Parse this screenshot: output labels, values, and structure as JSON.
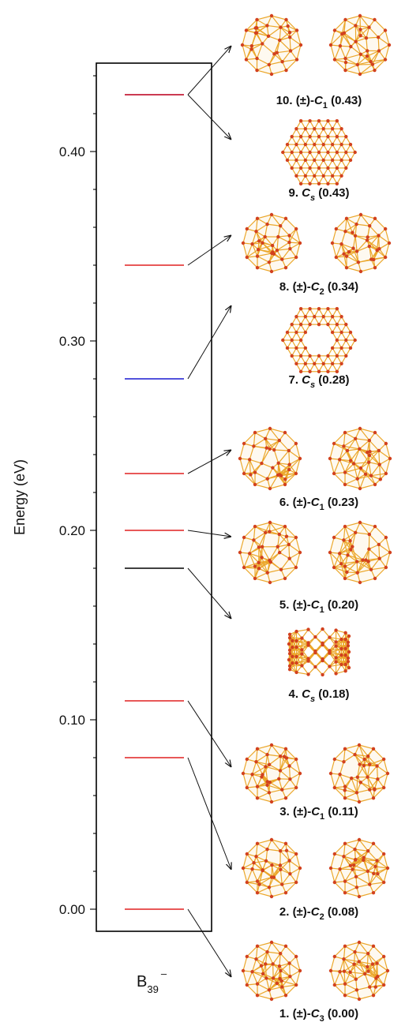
{
  "chart_data": {
    "type": "energy-level",
    "ylabel": "Energy (eV)",
    "ylim": [
      -0.02,
      0.455
    ],
    "yticks": [
      0.0,
      0.1,
      0.2,
      0.3,
      0.4
    ],
    "ytick_labels": [
      "0.00",
      "0.10",
      "0.20",
      "0.30",
      "0.40"
    ],
    "category": {
      "base": "B",
      "sub": "39",
      "sup": "–"
    },
    "colors": {
      "red": "#e02020",
      "blue": "#1a1ad0",
      "black": "#000000",
      "boron": "#d2411e",
      "bond": "#eba72a"
    },
    "levels": [
      {
        "id": 1,
        "energy": 0.0,
        "color": "red",
        "num": "1.",
        "pre": "(±)-",
        "sym": "C",
        "sub": "3",
        "val": "(0.00)",
        "mol": "cage"
      },
      {
        "id": 2,
        "energy": 0.08,
        "color": "red",
        "num": "2.",
        "pre": "(±)-",
        "sym": "C",
        "sub": "2",
        "val": "(0.08)",
        "mol": "cage"
      },
      {
        "id": 3,
        "energy": 0.11,
        "color": "red",
        "num": "3.",
        "pre": "(±)-",
        "sym": "C",
        "sub": "1",
        "val": "(0.11)",
        "mol": "cage"
      },
      {
        "id": 4,
        "energy": 0.18,
        "color": "black",
        "num": "4.",
        "pre": "",
        "sym": "C",
        "sub": "s",
        "val": "(0.18)",
        "mol": "tube"
      },
      {
        "id": 5,
        "energy": 0.2,
        "color": "red",
        "num": "5.",
        "pre": "(±)-",
        "sym": "C",
        "sub": "1",
        "val": "(0.20)",
        "mol": "cage"
      },
      {
        "id": 6,
        "energy": 0.23,
        "color": "red",
        "num": "6.",
        "pre": "(±)-",
        "sym": "C",
        "sub": "1",
        "val": "(0.23)",
        "mol": "cage"
      },
      {
        "id": 7,
        "energy": 0.28,
        "color": "blue",
        "num": "7.",
        "pre": "",
        "sym": "C",
        "sub": "s",
        "val": "(0.28)",
        "mol": "sheet"
      },
      {
        "id": 8,
        "energy": 0.34,
        "color": "red",
        "num": "8.",
        "pre": "(±)-",
        "sym": "C",
        "sub": "2",
        "val": "(0.34)",
        "mol": "cage"
      },
      {
        "id": 9,
        "energy": 0.43,
        "color": "blue",
        "num": "9.",
        "pre": "",
        "sym": "C",
        "sub": "s",
        "val": "(0.43)",
        "mol": "sheet"
      },
      {
        "id": 10,
        "energy": 0.43,
        "color": "red",
        "num": "10.",
        "pre": "(±)-",
        "sym": "C",
        "sub": "1",
        "val": "(0.43)",
        "mol": "cage"
      }
    ]
  }
}
